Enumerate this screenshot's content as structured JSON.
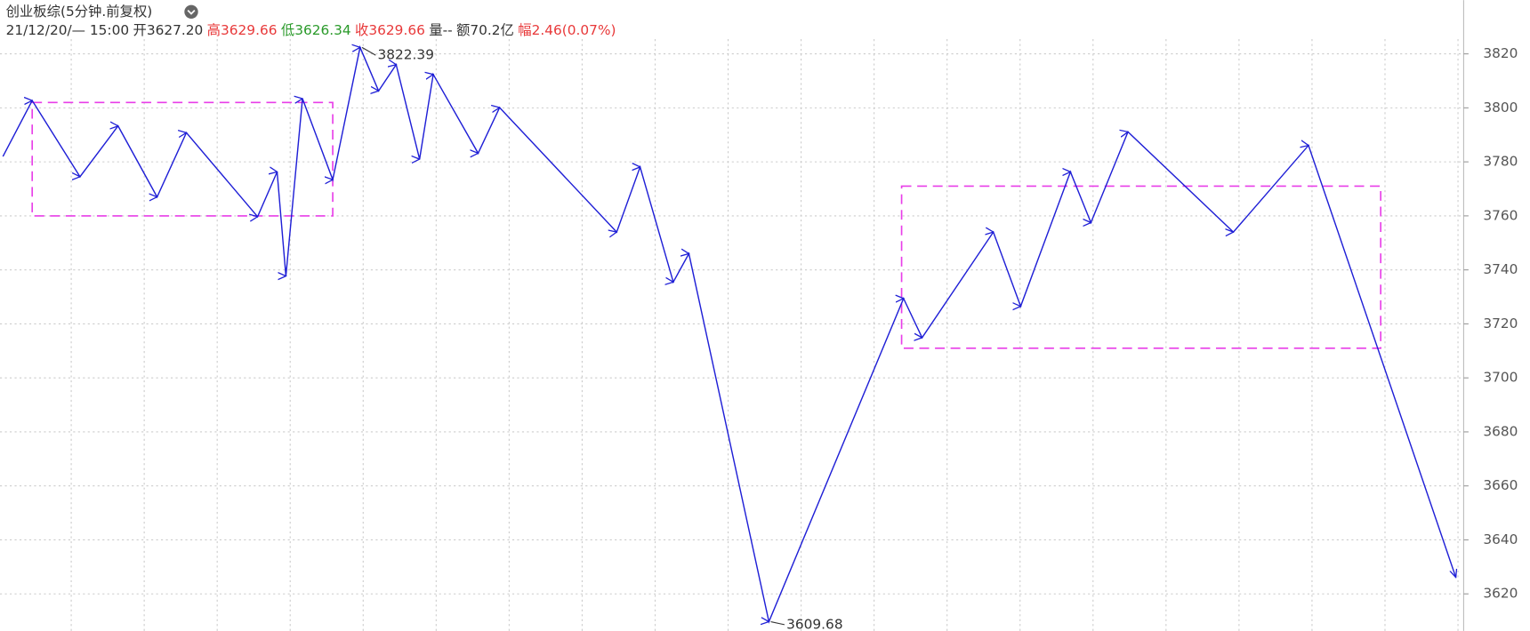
{
  "chart_data": {
    "type": "line",
    "title": "创业板综(5分钟.前复权)",
    "info": [
      {
        "label": "21/12/20/— 15:00",
        "color": "#333333"
      },
      {
        "label": "开",
        "value": "3627.20",
        "color": "#333333"
      },
      {
        "label": "高",
        "value": "3629.66",
        "color": "#e8393a"
      },
      {
        "label": "低",
        "value": "3626.34",
        "color": "#2a9a2a"
      },
      {
        "label": "收",
        "value": "3629.66",
        "color": "#e8393a"
      },
      {
        "label": "量",
        "value": "--",
        "color": "#333333"
      },
      {
        "label": "额",
        "value": "70.2亿",
        "color": "#333333"
      },
      {
        "label": "幅",
        "value": "2.46(0.07%)",
        "color": "#e8393a"
      }
    ],
    "series": [
      {
        "name": "zigzag",
        "color": "#1f1fd6",
        "x": [
          3,
          33,
          82,
          121,
          161,
          191,
          264,
          284,
          293,
          310,
          341,
          369,
          388,
          406,
          430,
          444,
          490,
          512,
          632,
          656,
          690,
          706,
          788,
          926,
          945,
          1018,
          1046,
          1097,
          1118,
          1156,
          1264,
          1341,
          1492
        ],
        "values": [
          3782,
          3802.7,
          3774.5,
          3793.3,
          3767,
          3790.8,
          3759.7,
          3776.3,
          3737.7,
          3803.4,
          3773.4,
          3822.4,
          3806.3,
          3816,
          3781,
          3812.4,
          3783.2,
          3800.1,
          3754,
          3778.1,
          3735.5,
          3746,
          3609.7,
          3729.4,
          3714.9,
          3754,
          3726.5,
          3776.3,
          3757.5,
          3791.1,
          3754,
          3786.1,
          3626.1
        ]
      }
    ],
    "boxes": [
      {
        "x": [
          33,
          341
        ],
        "y": [
          3760,
          3802
        ],
        "color": "#e83ee8"
      },
      {
        "x": [
          924,
          1415
        ],
        "y": [
          3711,
          3771
        ],
        "color": "#e83ee8"
      }
    ],
    "annotations": [
      {
        "x": 369,
        "value": 3822.39
      },
      {
        "x": 788,
        "value": 3609.68
      }
    ],
    "xlim": [
      0,
      1500
    ],
    "ylim": [
      3606.3,
      3839.9
    ],
    "yticks": [
      3620,
      3640,
      3660,
      3680,
      3700,
      3720,
      3740,
      3760,
      3780,
      3800,
      3820
    ],
    "grid": true
  }
}
